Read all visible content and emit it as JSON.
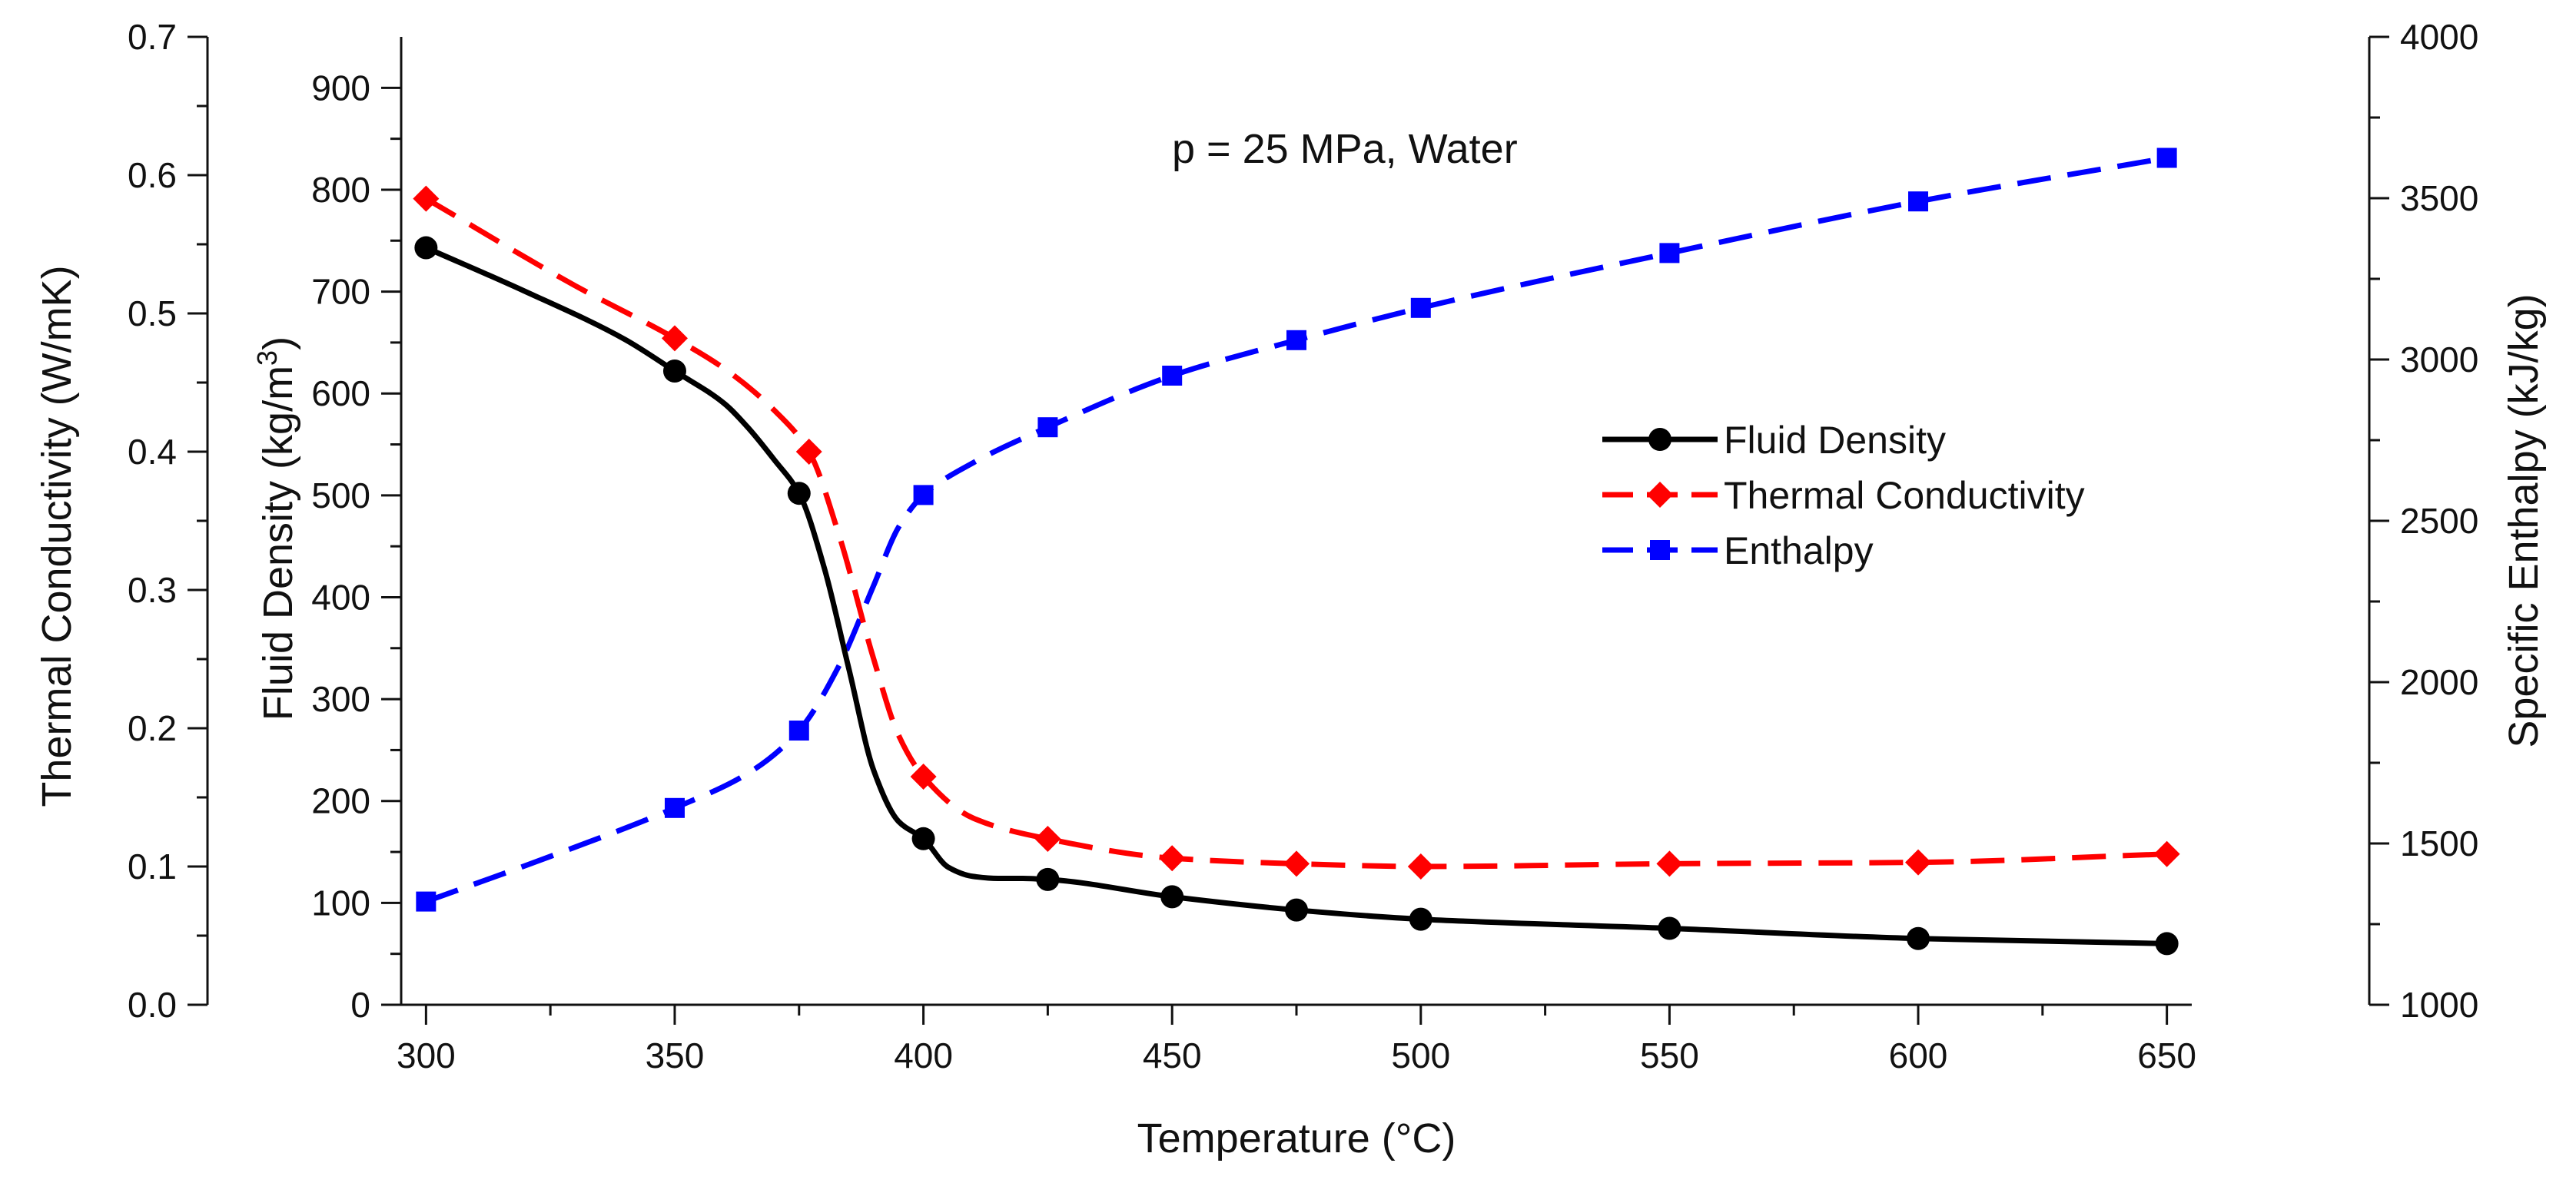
{
  "chart_data": {
    "type": "line",
    "title": "",
    "annotation": "p = 25 MPa, Water",
    "xlabel": "Temperature (°C)",
    "xlim": [
      295,
      655
    ],
    "xticks": [
      300,
      350,
      400,
      450,
      500,
      550,
      600,
      650
    ],
    "axes": {
      "conductivity": {
        "label": "Thermal Conductivity (W/mK)",
        "ylim": [
          0.0,
          0.7
        ],
        "ticks": [
          "0.0",
          "0.1",
          "0.2",
          "0.3",
          "0.4",
          "0.5",
          "0.6",
          "0.7"
        ]
      },
      "density": {
        "label_main": "Fluid Density (kg/m",
        "label_sup": "3",
        "label_end": ")",
        "ylim": [
          0,
          950
        ],
        "ticks": [
          "0",
          "100",
          "200",
          "300",
          "400",
          "500",
          "600",
          "700",
          "800",
          "900"
        ]
      },
      "enthalpy": {
        "label": "Specific Enthalpy (kJ/kg)",
        "ylim": [
          1000,
          4000
        ],
        "ticks": [
          "1000",
          "1500",
          "2000",
          "2500",
          "3000",
          "3500",
          "4000"
        ]
      }
    },
    "grid": false,
    "legend_position": "center-right",
    "series": [
      {
        "name": "Fluid Density",
        "axis": "density",
        "color": "#000000",
        "marker": "circle",
        "dash": "solid",
        "x": [
          300,
          350,
          375,
          400,
          425,
          450,
          475,
          500,
          550,
          600,
          650
        ],
        "y": [
          743,
          622,
          502,
          163,
          123,
          106,
          93,
          84,
          75,
          65,
          60
        ],
        "curve_x": [
          300,
          320,
          340,
          350,
          360,
          365,
          370,
          375,
          380,
          385,
          390,
          395,
          400,
          405,
          410,
          415,
          420,
          425,
          450,
          475,
          500,
          550,
          600,
          650
        ],
        "curve_y": [
          743,
          700,
          653,
          622,
          590,
          565,
          535,
          502,
          430,
          330,
          230,
          180,
          163,
          135,
          126,
          124,
          124,
          123,
          106,
          93,
          84,
          75,
          65,
          60
        ]
      },
      {
        "name": "Thermal Conductivity",
        "axis": "conductivity",
        "color": "#ff0000",
        "marker": "diamond",
        "dash": "dashed",
        "x": [
          300,
          350,
          377,
          400,
          425,
          450,
          475,
          500,
          550,
          600,
          650
        ],
        "y": [
          0.583,
          0.482,
          0.4,
          0.165,
          0.12,
          0.106,
          0.102,
          0.1,
          0.102,
          0.103,
          0.109
        ],
        "curve_x": [
          300,
          330,
          350,
          360,
          370,
          377,
          383,
          390,
          395,
          400,
          410,
          425,
          450,
          475,
          500,
          550,
          600,
          650
        ],
        "curve_y": [
          0.583,
          0.52,
          0.482,
          0.46,
          0.43,
          0.4,
          0.34,
          0.25,
          0.195,
          0.165,
          0.135,
          0.12,
          0.106,
          0.102,
          0.1,
          0.102,
          0.103,
          0.109
        ]
      },
      {
        "name": "Enthalpy",
        "axis": "enthalpy",
        "color": "#0000ff",
        "marker": "square",
        "dash": "dashed",
        "x": [
          300,
          350,
          375,
          400,
          425,
          450,
          475,
          500,
          550,
          600,
          650
        ],
        "y": [
          1320,
          1610,
          1850,
          2580,
          2790,
          2950,
          3060,
          3160,
          3330,
          3490,
          3625
        ],
        "curve_x": [
          300,
          325,
          350,
          365,
          375,
          383,
          390,
          395,
          400,
          410,
          425,
          450,
          475,
          500,
          550,
          600,
          650
        ],
        "curve_y": [
          1320,
          1460,
          1610,
          1720,
          1850,
          2050,
          2300,
          2480,
          2580,
          2680,
          2790,
          2950,
          3060,
          3160,
          3330,
          3490,
          3625
        ]
      }
    ]
  }
}
